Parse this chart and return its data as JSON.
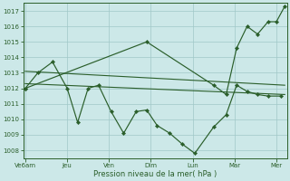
{
  "xlabel_label": "Pression niveau de la mer( hPa )",
  "xtick_labels": [
    "Ve6am",
    "Jeu",
    "Ven",
    "Dim",
    "Lun",
    "Mar",
    "Mer"
  ],
  "ylim": [
    1007.5,
    1017.5
  ],
  "yticks": [
    1008,
    1009,
    1010,
    1011,
    1012,
    1013,
    1014,
    1015,
    1016,
    1017
  ],
  "xlim": [
    -0.05,
    6.25
  ],
  "xtick_positions": [
    0,
    1,
    2,
    3,
    4,
    5,
    6
  ],
  "jagged_x": [
    0,
    0.3,
    0.65,
    1.0,
    1.25,
    1.5,
    1.75,
    2.05,
    2.35,
    2.65,
    2.9,
    3.15,
    3.45,
    3.75,
    4.05,
    4.5,
    4.8,
    5.05,
    5.3,
    5.55,
    5.8,
    6.1
  ],
  "jagged_y": [
    1012.0,
    1013.0,
    1013.7,
    1012.0,
    1009.8,
    1012.0,
    1012.2,
    1010.5,
    1009.1,
    1010.5,
    1010.6,
    1009.6,
    1009.1,
    1008.4,
    1007.8,
    1009.5,
    1010.3,
    1012.2,
    1011.8,
    1011.6,
    1011.5,
    1011.5
  ],
  "rising_x": [
    0,
    2.9,
    4.5,
    4.8,
    5.05,
    5.3,
    5.55,
    5.8,
    6.0,
    6.2
  ],
  "rising_y": [
    1012.0,
    1015.0,
    1012.2,
    1011.6,
    1014.6,
    1016.0,
    1015.5,
    1016.3,
    1016.3,
    1017.3
  ],
  "trend1_x": [
    0,
    6.2
  ],
  "trend1_y": [
    1013.1,
    1012.2
  ],
  "trend2_x": [
    0,
    6.2
  ],
  "trend2_y": [
    1012.3,
    1011.6
  ],
  "line_color": "#2a5e2a",
  "bg_color": "#cce8e8",
  "grid_color": "#a0c8c8",
  "fig_bg": "#cce8e8"
}
